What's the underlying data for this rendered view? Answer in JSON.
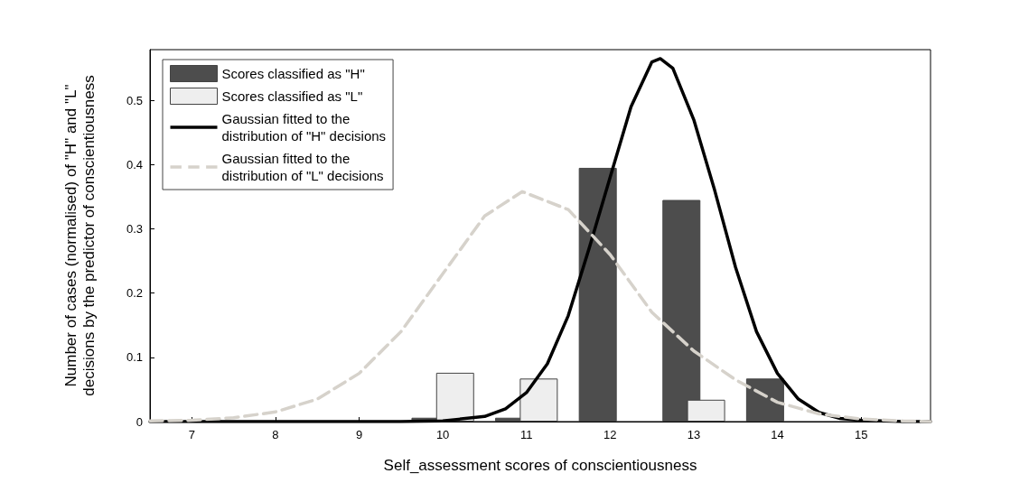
{
  "chart_data": {
    "type": "bar",
    "xlabel": "Self_assessment scores of conscientiousness",
    "ylabel": "Number of cases (normalised) of \"H\" and \"L\"\ndecisions by the predictor of conscientiousness",
    "x": [
      10,
      11,
      12,
      13,
      14
    ],
    "series": [
      {
        "name": "Scores classified as \"H\"",
        "color": "#4d4d4d",
        "values": [
          0.006,
          0.006,
          0.395,
          0.345,
          0.067
        ]
      },
      {
        "name": "Scores classified as \"L\"",
        "color": "#eeeeee",
        "values": [
          0.076,
          0.067,
          null,
          0.034,
          null
        ]
      },
      {
        "name": "Gaussian fitted to the\ndistribution of \"H\" decisions",
        "type": "line",
        "color": "#000000",
        "line_style": "solid",
        "x": [
          6.5,
          7,
          8,
          9,
          9.5,
          10,
          10.5,
          10.75,
          11,
          11.25,
          11.5,
          11.75,
          12,
          12.25,
          12.5,
          12.6,
          12.75,
          13,
          13.25,
          13.5,
          13.75,
          14,
          14.25,
          14.5,
          14.75,
          15,
          15.5,
          15.83
        ],
        "values": [
          0,
          0,
          0,
          0,
          0,
          0.001,
          0.008,
          0.02,
          0.045,
          0.09,
          0.165,
          0.27,
          0.38,
          0.49,
          0.56,
          0.565,
          0.55,
          0.47,
          0.36,
          0.24,
          0.14,
          0.075,
          0.035,
          0.014,
          0.005,
          0.002,
          0,
          0
        ]
      },
      {
        "name": "Gaussian fitted to the\ndistribution of \"L\" decisions",
        "type": "line",
        "color": "#d6d2cb",
        "line_style": "dashed",
        "x": [
          6.5,
          7,
          7.5,
          8,
          8.5,
          9,
          9.5,
          10,
          10.5,
          10.95,
          11.5,
          12,
          12.5,
          13,
          13.5,
          14,
          14.5,
          15,
          15.5,
          15.83
        ],
        "values": [
          0.001,
          0.002,
          0.006,
          0.015,
          0.035,
          0.075,
          0.14,
          0.23,
          0.32,
          0.358,
          0.33,
          0.26,
          0.17,
          0.11,
          0.065,
          0.03,
          0.012,
          0.004,
          0.001,
          0
        ]
      }
    ],
    "xlim": [
      6.5,
      15.83
    ],
    "xticks": [
      7,
      8,
      9,
      10,
      11,
      12,
      13,
      14,
      15
    ],
    "ylim": [
      0,
      0.579
    ],
    "yticks": [
      0,
      0.1,
      0.2,
      0.3,
      0.4,
      0.5
    ],
    "legend": "top left",
    "grid": false,
    "marker": "none"
  }
}
